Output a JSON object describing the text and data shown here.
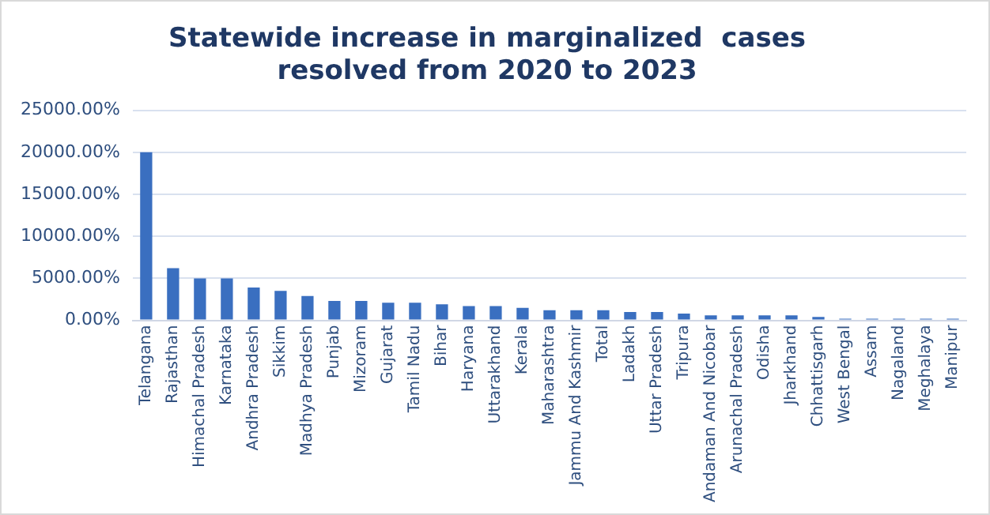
{
  "chart_data": {
    "type": "bar",
    "title": "Statewide increase in marginalized  cases resolved from 2020 to 2023",
    "categories": [
      "Telangana",
      "Rajasthan",
      "Himachal Pradesh",
      "Karnataka",
      "Andhra Pradesh",
      "Sikkim",
      "Madhya Pradesh",
      "Punjab",
      "Mizoram",
      "Gujarat",
      "Tamil Nadu",
      "Bihar",
      "Haryana",
      "Uttarakhand",
      "Kerala",
      "Maharashtra",
      "Jammu And Kashmir",
      "Total",
      "Ladakh",
      "Uttar Pradesh",
      "Tripura",
      "Andaman And Nicobar",
      "Arunachal Pradesh",
      "Odisha",
      "Jharkhand",
      "Chhattisgarh",
      "West Bengal",
      "Assam",
      "Nagaland",
      "Meghalaya",
      "Manipur"
    ],
    "values": [
      20000,
      6200,
      5000,
      5000,
      3900,
      3500,
      2900,
      2300,
      2300,
      2100,
      2100,
      1900,
      1700,
      1700,
      1500,
      1200,
      1200,
      1200,
      1000,
      1000,
      800,
      600,
      600,
      600,
      600,
      400,
      200,
      200,
      200,
      200,
      200
    ],
    "color": "#3a6fc0",
    "ylim": [
      0,
      25000
    ],
    "yticks": [
      {
        "value": 0,
        "label": "0.00%"
      },
      {
        "value": 5000,
        "label": "5000.00%"
      },
      {
        "value": 10000,
        "label": "10000.00%"
      },
      {
        "value": 15000,
        "label": "15000.00%"
      },
      {
        "value": 20000,
        "label": "20000.00%"
      },
      {
        "value": 25000,
        "label": "25000.00%"
      }
    ],
    "grid": "y"
  }
}
